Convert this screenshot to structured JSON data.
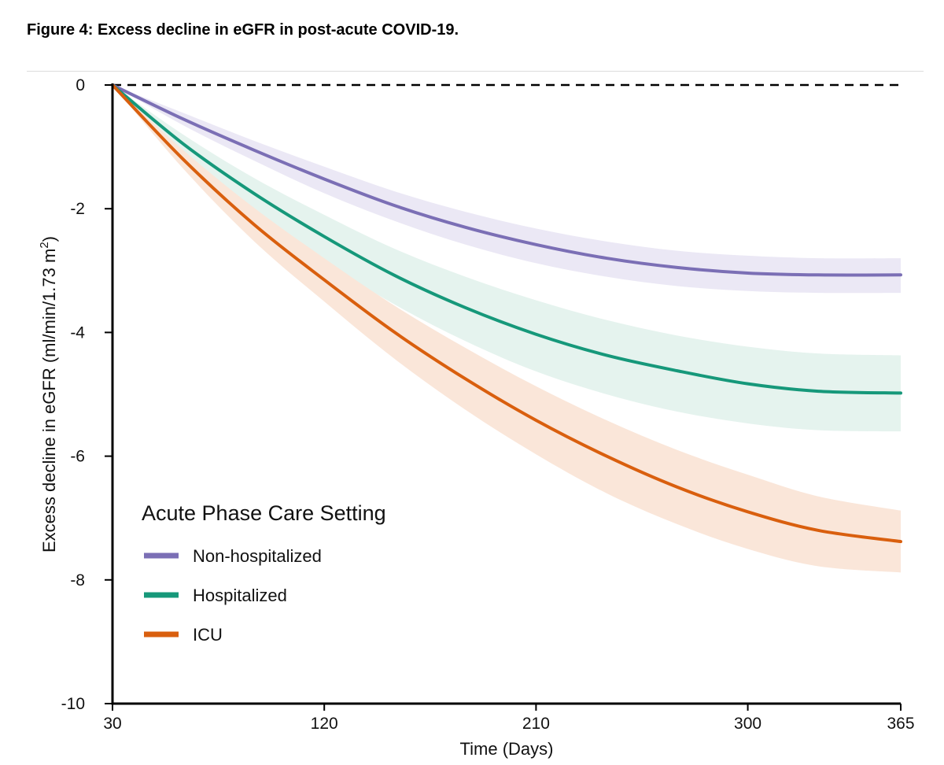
{
  "figure": {
    "title": "Figure 4: Excess decline in eGFR in post-acute COVID-19."
  },
  "chart_data": {
    "type": "line",
    "title": "",
    "xlabel": "Time (Days)",
    "ylabel_main": "Excess decline in eGFR ",
    "ylabel_unit": "(ml/min/1.73 m",
    "ylabel_sup": "2",
    "ylabel_close": ")",
    "xlim": [
      30,
      365
    ],
    "ylim": [
      -10,
      0
    ],
    "xticks": [
      30,
      120,
      210,
      300,
      365
    ],
    "yticks": [
      0,
      -2,
      -4,
      -6,
      -8,
      -10
    ],
    "reference_line": {
      "y": 0,
      "style": "dashed"
    },
    "grid": false,
    "legend": {
      "title": "Acute Phase Care Setting",
      "position": "bottom-left"
    },
    "x": [
      30,
      60,
      90,
      120,
      150,
      180,
      210,
      240,
      270,
      300,
      330,
      365
    ],
    "series": [
      {
        "name": "Non-hospitalized",
        "color": "#7b6fb5",
        "band_color": "#ebe8f5",
        "values": [
          0,
          -0.55,
          -1.05,
          -1.52,
          -1.95,
          -2.3,
          -2.58,
          -2.8,
          -2.95,
          -3.04,
          -3.07,
          -3.07
        ],
        "lower": [
          0,
          -0.65,
          -1.22,
          -1.75,
          -2.2,
          -2.58,
          -2.88,
          -3.1,
          -3.25,
          -3.33,
          -3.36,
          -3.36
        ],
        "upper": [
          0,
          -0.45,
          -0.9,
          -1.32,
          -1.72,
          -2.05,
          -2.32,
          -2.53,
          -2.68,
          -2.76,
          -2.8,
          -2.8
        ]
      },
      {
        "name": "Hospitalized",
        "color": "#16987a",
        "band_color": "#e5f3ee",
        "values": [
          0,
          -0.95,
          -1.75,
          -2.45,
          -3.08,
          -3.6,
          -4.03,
          -4.37,
          -4.62,
          -4.83,
          -4.95,
          -4.98
        ],
        "lower": [
          0,
          -1.1,
          -2.02,
          -2.85,
          -3.55,
          -4.14,
          -4.63,
          -5.0,
          -5.28,
          -5.47,
          -5.58,
          -5.6
        ],
        "upper": [
          0,
          -0.8,
          -1.5,
          -2.1,
          -2.65,
          -3.1,
          -3.48,
          -3.8,
          -4.05,
          -4.23,
          -4.34,
          -4.37
        ]
      },
      {
        "name": "ICU",
        "color": "#d95f0e",
        "band_color": "#fae6d9",
        "values": [
          0,
          -1.2,
          -2.25,
          -3.15,
          -4.0,
          -4.75,
          -5.42,
          -6.0,
          -6.5,
          -6.9,
          -7.2,
          -7.38
        ],
        "lower": [
          0,
          -1.35,
          -2.52,
          -3.5,
          -4.43,
          -5.25,
          -5.97,
          -6.6,
          -7.1,
          -7.5,
          -7.78,
          -7.88
        ],
        "upper": [
          0,
          -1.05,
          -1.98,
          -2.8,
          -3.57,
          -4.25,
          -4.87,
          -5.42,
          -5.9,
          -6.3,
          -6.65,
          -6.88
        ]
      }
    ]
  }
}
